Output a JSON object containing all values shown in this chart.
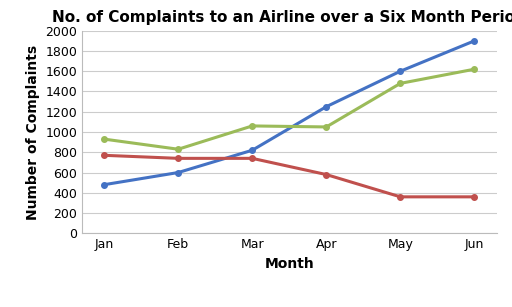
{
  "title": "No. of Complaints to an Airline over a Six Month Period",
  "xlabel": "Month",
  "ylabel": "Number of Complaints",
  "months": [
    "Jan",
    "Feb",
    "Mar",
    "Apr",
    "May",
    "Jun"
  ],
  "series": {
    "In person": {
      "values": [
        480,
        600,
        820,
        1250,
        1600,
        1900
      ],
      "color": "#4472C4",
      "marker": "o"
    },
    "by email/fax": {
      "values": [
        770,
        740,
        740,
        580,
        360,
        360
      ],
      "color": "#C0504D",
      "marker": "o"
    },
    "by telephone": {
      "values": [
        930,
        830,
        1060,
        1050,
        1480,
        1620
      ],
      "color": "#9BBB59",
      "marker": "o"
    }
  },
  "ylim": [
    0,
    2000
  ],
  "yticks": [
    0,
    200,
    400,
    600,
    800,
    1000,
    1200,
    1400,
    1600,
    1800,
    2000
  ],
  "background_color": "#FFFFFF",
  "grid_color": "#CCCCCC",
  "title_fontsize": 11,
  "axis_label_fontsize": 10,
  "tick_fontsize": 9,
  "legend_fontsize": 9,
  "line_width": 2.2
}
